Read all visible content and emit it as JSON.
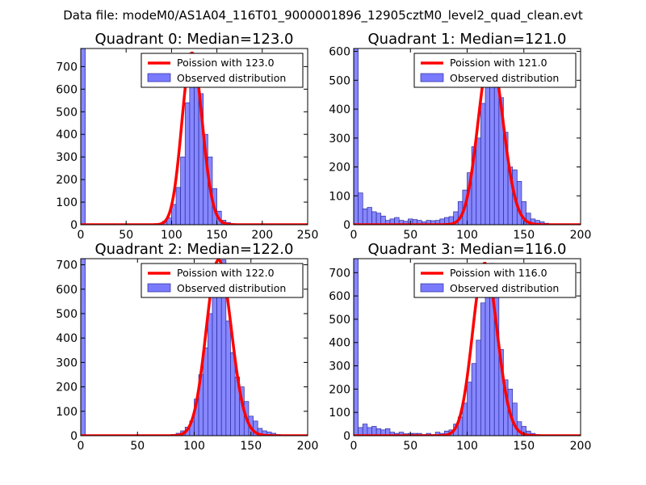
{
  "suptitle": "Data file: modeM0/AS1A04_116T01_9000001896_12905cztM0_level2_quad_clean.evt",
  "colors": {
    "hist_fill": "#7a7aff",
    "hist_edge": "#2b2b9e",
    "poisson": "#ff0000",
    "axes": "#000000"
  },
  "chart_data": [
    {
      "type": "bar",
      "title": "Quadrant 0: Median=123.0",
      "median": 123.0,
      "xlim": [
        0,
        250
      ],
      "ylim": [
        0,
        780
      ],
      "xticks": [
        0,
        50,
        100,
        150,
        200,
        250
      ],
      "yticks": [
        0,
        100,
        200,
        300,
        400,
        500,
        600,
        700
      ],
      "bin_width": 5,
      "bins": [
        [
          0,
          780
        ],
        [
          85,
          5
        ],
        [
          90,
          15
        ],
        [
          95,
          30
        ],
        [
          100,
          90
        ],
        [
          105,
          165
        ],
        [
          110,
          300
        ],
        [
          115,
          540
        ],
        [
          120,
          760
        ],
        [
          125,
          680
        ],
        [
          130,
          580
        ],
        [
          135,
          400
        ],
        [
          140,
          300
        ],
        [
          145,
          160
        ],
        [
          150,
          60
        ],
        [
          155,
          20
        ],
        [
          160,
          10
        ],
        [
          165,
          5
        ]
      ],
      "legend": [
        "Poission with 123.0",
        "Observed distribution"
      ]
    },
    {
      "type": "bar",
      "title": "Quadrant 1: Median=121.0",
      "median": 121.0,
      "xlim": [
        0,
        200
      ],
      "ylim": [
        0,
        610
      ],
      "xticks": [
        0,
        50,
        100,
        150,
        200
      ],
      "yticks": [
        0,
        100,
        200,
        300,
        400,
        500,
        600
      ],
      "bin_width": 4,
      "bins": [
        [
          0,
          610
        ],
        [
          4,
          110
        ],
        [
          8,
          55
        ],
        [
          12,
          60
        ],
        [
          16,
          45
        ],
        [
          20,
          40
        ],
        [
          24,
          30
        ],
        [
          28,
          15
        ],
        [
          32,
          20
        ],
        [
          36,
          25
        ],
        [
          40,
          15
        ],
        [
          44,
          12
        ],
        [
          48,
          20
        ],
        [
          52,
          18
        ],
        [
          56,
          15
        ],
        [
          60,
          10
        ],
        [
          64,
          15
        ],
        [
          68,
          14
        ],
        [
          72,
          15
        ],
        [
          76,
          20
        ],
        [
          80,
          25
        ],
        [
          84,
          28
        ],
        [
          88,
          45
        ],
        [
          92,
          80
        ],
        [
          96,
          120
        ],
        [
          100,
          180
        ],
        [
          104,
          270
        ],
        [
          108,
          300
        ],
        [
          112,
          420
        ],
        [
          116,
          540
        ],
        [
          120,
          590
        ],
        [
          124,
          500
        ],
        [
          128,
          440
        ],
        [
          132,
          320
        ],
        [
          136,
          200
        ],
        [
          140,
          190
        ],
        [
          144,
          150
        ],
        [
          148,
          80
        ],
        [
          152,
          40
        ],
        [
          156,
          20
        ],
        [
          160,
          15
        ],
        [
          164,
          10
        ],
        [
          168,
          5
        ]
      ],
      "legend": [
        "Poission with 121.0",
        "Observed distribution"
      ]
    },
    {
      "type": "bar",
      "title": "Quadrant 2: Median=122.0",
      "median": 122.0,
      "xlim": [
        0,
        200
      ],
      "ylim": [
        0,
        725
      ],
      "xticks": [
        0,
        50,
        100,
        150,
        200
      ],
      "yticks": [
        0,
        100,
        200,
        300,
        400,
        500,
        600,
        700
      ],
      "bin_width": 4,
      "bins": [
        [
          0,
          725
        ],
        [
          80,
          5
        ],
        [
          84,
          10
        ],
        [
          88,
          20
        ],
        [
          92,
          35
        ],
        [
          96,
          60
        ],
        [
          100,
          150
        ],
        [
          104,
          250
        ],
        [
          108,
          360
        ],
        [
          112,
          500
        ],
        [
          116,
          580
        ],
        [
          120,
          660
        ],
        [
          124,
          720
        ],
        [
          128,
          470
        ],
        [
          132,
          340
        ],
        [
          136,
          240
        ],
        [
          140,
          200
        ],
        [
          144,
          140
        ],
        [
          148,
          80
        ],
        [
          152,
          60
        ],
        [
          156,
          30
        ],
        [
          160,
          20
        ],
        [
          164,
          15
        ],
        [
          168,
          10
        ],
        [
          172,
          5
        ]
      ],
      "legend": [
        "Poission with 122.0",
        "Observed distribution"
      ]
    },
    {
      "type": "bar",
      "title": "Quadrant 3: Median=116.0",
      "median": 116.0,
      "xlim": [
        0,
        200
      ],
      "ylim": [
        0,
        760
      ],
      "xticks": [
        0,
        50,
        100,
        150,
        200
      ],
      "yticks": [
        0,
        100,
        200,
        300,
        400,
        500,
        600,
        700
      ],
      "bin_width": 4,
      "bins": [
        [
          0,
          760
        ],
        [
          4,
          35
        ],
        [
          8,
          50
        ],
        [
          12,
          35
        ],
        [
          16,
          40
        ],
        [
          20,
          30
        ],
        [
          24,
          25
        ],
        [
          28,
          30
        ],
        [
          32,
          15
        ],
        [
          36,
          10
        ],
        [
          40,
          15
        ],
        [
          44,
          8
        ],
        [
          48,
          10
        ],
        [
          52,
          10
        ],
        [
          56,
          10
        ],
        [
          60,
          5
        ],
        [
          64,
          10
        ],
        [
          68,
          5
        ],
        [
          72,
          15
        ],
        [
          76,
          10
        ],
        [
          80,
          20
        ],
        [
          84,
          25
        ],
        [
          88,
          50
        ],
        [
          92,
          80
        ],
        [
          96,
          140
        ],
        [
          100,
          230
        ],
        [
          104,
          310
        ],
        [
          108,
          410
        ],
        [
          112,
          570
        ],
        [
          116,
          710
        ],
        [
          120,
          740
        ],
        [
          124,
          610
        ],
        [
          128,
          370
        ],
        [
          132,
          240
        ],
        [
          136,
          200
        ],
        [
          140,
          140
        ],
        [
          144,
          60
        ],
        [
          148,
          40
        ],
        [
          152,
          20
        ],
        [
          156,
          10
        ],
        [
          160,
          5
        ]
      ],
      "legend": [
        "Poission with 116.0",
        "Observed distribution"
      ]
    }
  ]
}
